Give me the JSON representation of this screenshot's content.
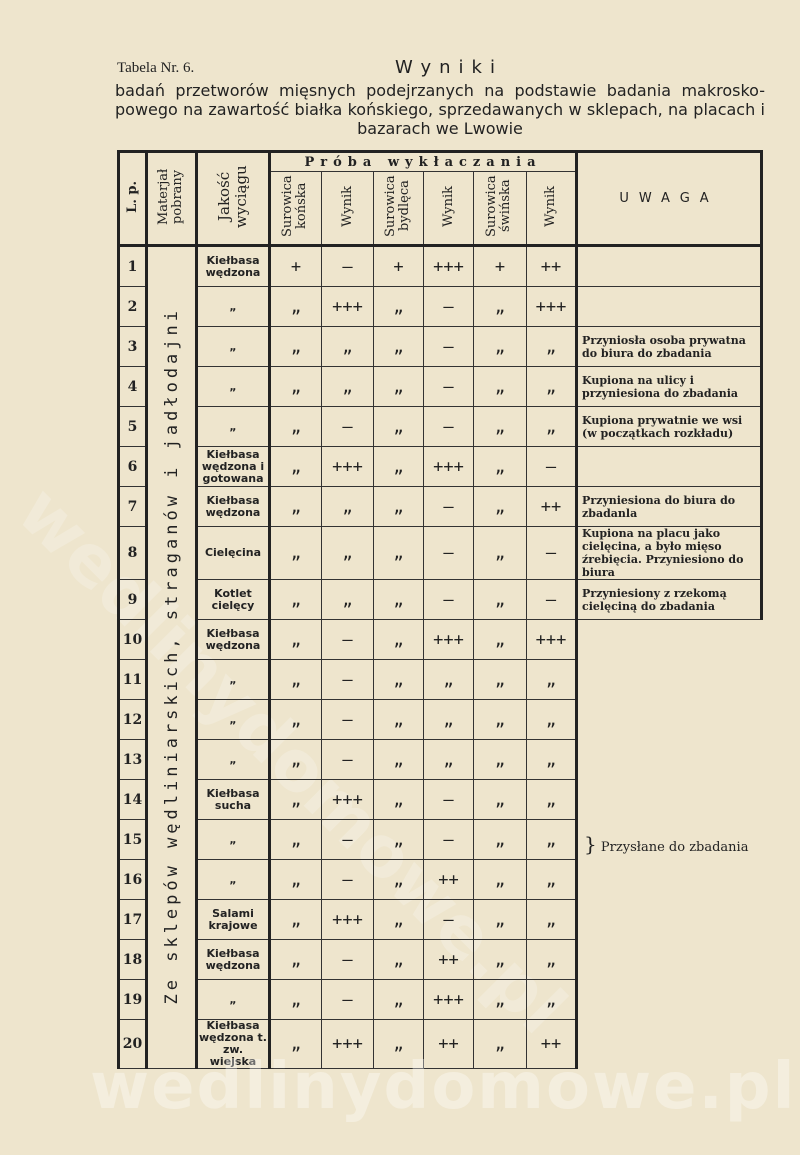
{
  "header": {
    "table_label": "Tabela Nr. 6.",
    "title": "Wyniki",
    "subtitle": "badań przetworów mięsnych podejrzanych na podstawie badania makrosko-powego na zawartość białka końskiego, sprzedawanych w sklepach, na placach i bazarach we Lwowie"
  },
  "columns": {
    "lp": "L. p.",
    "material": "Materjał pobrany",
    "quality": "Jakość wyciągu",
    "group": "Próba wykłaczania",
    "sub": [
      "Surowica końska",
      "Wynik",
      "Surowica bydlęca",
      "Wynik",
      "Surowica świńska",
      "Wynik"
    ],
    "remark": "UWAGA"
  },
  "material_text": "Ze sklepów wędliniarskich, straganów i jadłodajni",
  "brace_remark": "Przysłane do zbadania",
  "watermark": "wedlinydomowe.pl",
  "rows": [
    {
      "lp": "1",
      "q": "Kiełbasa wędzona",
      "c": [
        "+",
        "—",
        "+",
        "+++",
        "+",
        "++"
      ],
      "r": ""
    },
    {
      "lp": "2",
      "q": "„",
      "c": [
        "„",
        "+++",
        "„",
        "—",
        "„",
        "+++"
      ],
      "r": ""
    },
    {
      "lp": "3",
      "q": "„",
      "c": [
        "„",
        "„",
        "„",
        "—",
        "„",
        "„"
      ],
      "r": "Przyniosła osoba prywatna do biura do zbadania"
    },
    {
      "lp": "4",
      "q": "„",
      "c": [
        "„",
        "„",
        "„",
        "—",
        "„",
        "„"
      ],
      "r": "Kupiona na ulicy i przyniesiona do zbadania"
    },
    {
      "lp": "5",
      "q": "„",
      "c": [
        "„",
        "—",
        "„",
        "—",
        "„",
        "„"
      ],
      "r": "Kupiona prywatnie we wsi (w początkach rozkładu)"
    },
    {
      "lp": "6",
      "q": "Kiełbasa wędzona i gotowana",
      "c": [
        "„",
        "+++",
        "„",
        "+++",
        "„",
        "—"
      ],
      "r": ""
    },
    {
      "lp": "7",
      "q": "Kiełbasa wędzona",
      "c": [
        "„",
        "„",
        "„",
        "—",
        "„",
        "++"
      ],
      "r": "Przyniesiona do biura do zbadanla"
    },
    {
      "lp": "8",
      "q": "Cielęcina",
      "c": [
        "„",
        "„",
        "„",
        "—",
        "„",
        "—"
      ],
      "r": "Kupiona na placu jako cielęcina, a było mięso źrebięcia. Przyniesiono do biura"
    },
    {
      "lp": "9",
      "q": "Kotlet cielęcy",
      "c": [
        "„",
        "„",
        "„",
        "—",
        "„",
        "—"
      ],
      "r": "Przyniesiony z rzekomą cielęciną do zbadania"
    },
    {
      "lp": "10",
      "q": "Kiełbasa wędzona",
      "c": [
        "„",
        "—",
        "„",
        "+++",
        "„",
        "+++"
      ]
    },
    {
      "lp": "11",
      "q": "„",
      "c": [
        "„",
        "—",
        "„",
        "„",
        "„",
        "„"
      ]
    },
    {
      "lp": "12",
      "q": "„",
      "c": [
        "„",
        "—",
        "„",
        "„",
        "„",
        "„"
      ]
    },
    {
      "lp": "13",
      "q": "„",
      "c": [
        "„",
        "—",
        "„",
        "„",
        "„",
        "„"
      ]
    },
    {
      "lp": "14",
      "q": "Kiełbasa sucha",
      "c": [
        "„",
        "+++",
        "„",
        "—",
        "„",
        "„"
      ]
    },
    {
      "lp": "15",
      "q": "„",
      "c": [
        "„",
        "—",
        "„",
        "—",
        "„",
        "„"
      ]
    },
    {
      "lp": "16",
      "q": "„",
      "c": [
        "„",
        "—",
        "„",
        "++",
        "„",
        "„"
      ]
    },
    {
      "lp": "17",
      "q": "Salami krajowe",
      "c": [
        "„",
        "+++",
        "„",
        "—",
        "„",
        "„"
      ]
    },
    {
      "lp": "18",
      "q": "Kiełbasa wędzona",
      "c": [
        "„",
        "—",
        "„",
        "++",
        "„",
        "„"
      ]
    },
    {
      "lp": "19",
      "q": "„",
      "c": [
        "„",
        "—",
        "„",
        "+++",
        "„",
        "„"
      ]
    },
    {
      "lp": "20",
      "q": "Kiełbasa wędzona t. zw. wiejska",
      "c": [
        "„",
        "+++",
        "„",
        "++",
        "„",
        "++"
      ]
    }
  ]
}
